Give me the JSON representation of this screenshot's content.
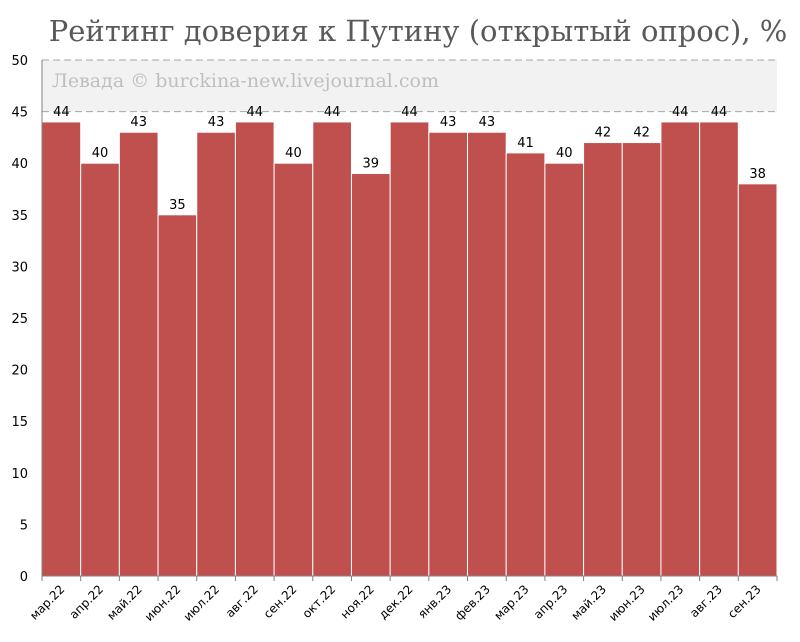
{
  "chart_data": {
    "type": "bar",
    "title": "Рейтинг доверия к Путину (открытый опрос), %",
    "watermark": "Левада © burckina-new.livejournal.com",
    "categories": [
      "мар.22",
      "апр.22",
      "май.22",
      "июн.22",
      "июл.22",
      "авг.22",
      "сен.22",
      "окт.22",
      "ноя.22",
      "дек.22",
      "янв.23",
      "фев.23",
      "мар.23",
      "апр.23",
      "май.23",
      "июн.23",
      "июл.23",
      "авг.23",
      "сен.23"
    ],
    "values": [
      44,
      40,
      43,
      35,
      43,
      44,
      40,
      44,
      39,
      44,
      43,
      43,
      41,
      40,
      42,
      42,
      44,
      44,
      38
    ],
    "yticks": [
      0,
      5,
      10,
      15,
      20,
      25,
      30,
      35,
      40,
      45,
      50
    ],
    "ylim": [
      0,
      50
    ],
    "xlabel": "",
    "ylabel": "",
    "grid": "dashed lines at 45 and 50",
    "bar_color": "#c0504d",
    "band_color": "#f2f2f2"
  }
}
